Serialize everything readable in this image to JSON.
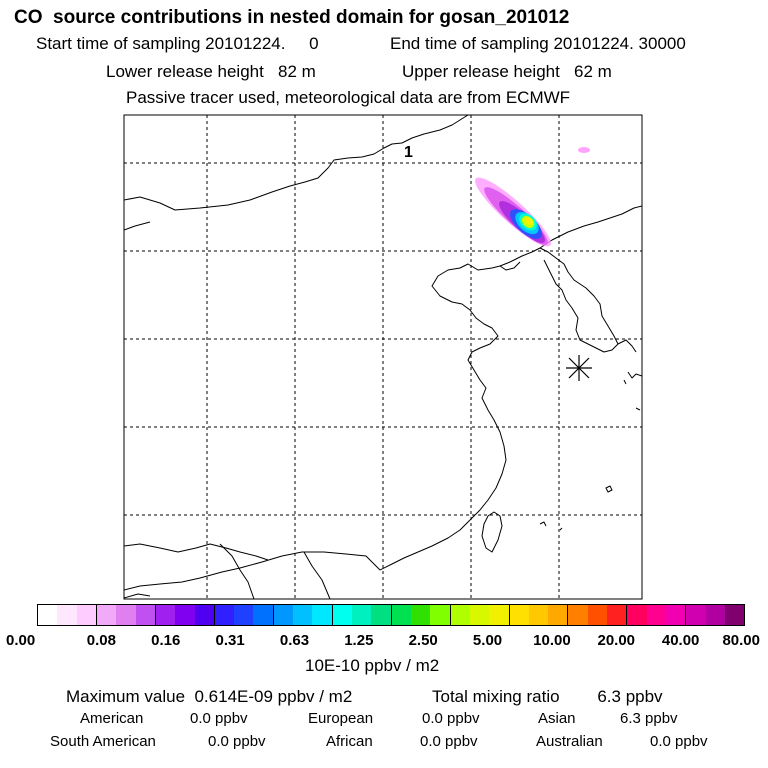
{
  "header": {
    "title": "CO  source contributions in nested domain for gosan_201012",
    "start_label": "Start time of sampling 20101224.     0",
    "end_label": "End time of sampling 20101224. 30000",
    "lower_height": "Lower release height   82 m",
    "upper_height": "Upper release height   62 m",
    "tracer_note": "Passive tracer used, meteorological data are from ECMWF"
  },
  "map": {
    "marker_label": "1",
    "station_marker": "station-asterisk",
    "plume_colors": [
      "#ff99ff",
      "#e060f0",
      "#b030e0",
      "#3050ff",
      "#00c8ff",
      "#00ffcc",
      "#ccff00",
      "#ffee00"
    ]
  },
  "colorbar": {
    "ticks": [
      "0.00",
      "0.08",
      "0.16",
      "0.31",
      "0.63",
      "1.25",
      "2.50",
      "5.00",
      "10.00",
      "20.00",
      "40.00",
      "80.00"
    ],
    "unit": "10E-10 ppbv / m2",
    "colors": [
      "#ffffff",
      "#ffe8ff",
      "#ffccff",
      "#f0aaf8",
      "#e080f0",
      "#c050f0",
      "#a020f0",
      "#8000f0",
      "#5000f0",
      "#3020ff",
      "#2040ff",
      "#0070ff",
      "#0098ff",
      "#00c0ff",
      "#00e8ff",
      "#00ffee",
      "#00f0c0",
      "#00e080",
      "#00e050",
      "#30e000",
      "#80ff00",
      "#b0ff00",
      "#d8f800",
      "#f0f000",
      "#ffe000",
      "#ffc800",
      "#ffa800",
      "#ff8000",
      "#ff5000",
      "#ff2020",
      "#ff0060",
      "#ff0090",
      "#f000b0",
      "#d000b0",
      "#b000a0",
      "#800070"
    ]
  },
  "stats": {
    "max_value": "Maximum value  0.614E-09 ppbv / m2",
    "total_mixing": "Total mixing ratio        6.3 ppbv",
    "american": "American",
    "american_val": "0.0 ppbv",
    "european": "European",
    "european_val": "0.0 ppbv",
    "asian": "Asian",
    "asian_val": "6.3 ppbv",
    "south_american": "South American",
    "south_american_val": "0.0 ppbv",
    "african": "African",
    "african_val": "0.0 ppbv",
    "australian": "Australian",
    "australian_val": "0.0 ppbv"
  }
}
